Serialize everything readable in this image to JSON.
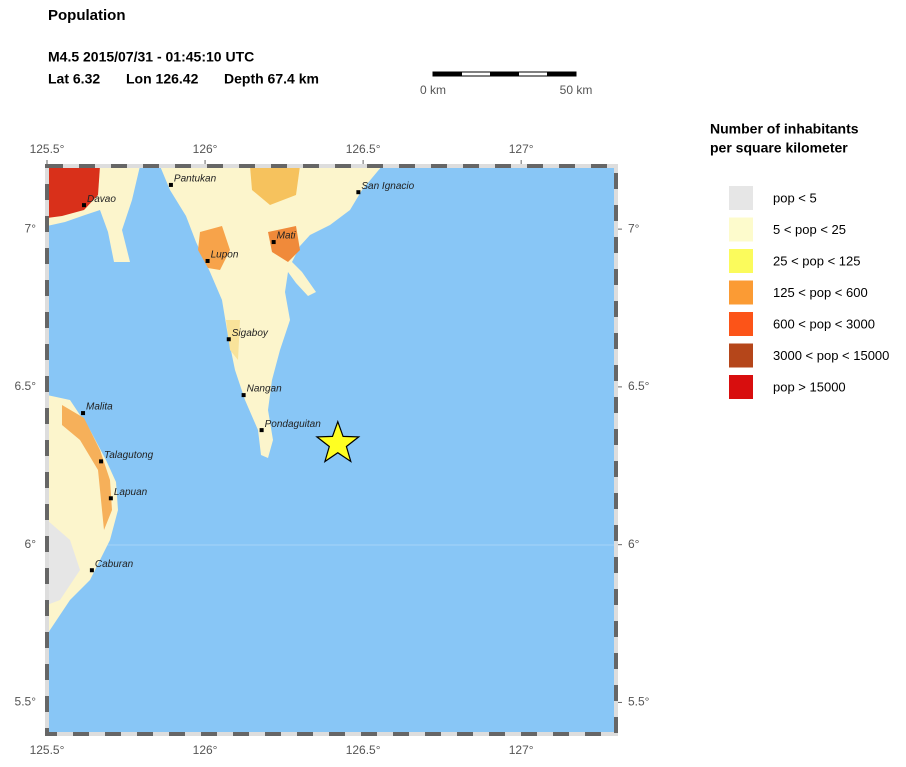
{
  "header": {
    "title": "Population",
    "event": "M4.5  2015/07/31 - 01:45:10 UTC",
    "lat": "Lat  6.32",
    "lon": "Lon 126.42",
    "depth": "Depth  67.4 km"
  },
  "scale_bar": {
    "start": "0 km",
    "end": "50 km"
  },
  "map": {
    "xlim": [
      125.5,
      127.3
    ],
    "ylim": [
      5.4,
      7.2
    ],
    "xticks": [
      {
        "value": 125.5,
        "label": "125.5°"
      },
      {
        "value": 126,
        "label": "126°"
      },
      {
        "value": 126.5,
        "label": "126.5°"
      },
      {
        "value": 127,
        "label": "127°"
      }
    ],
    "yticks": [
      {
        "value": 5.5,
        "label": "5.5°"
      },
      {
        "value": 6,
        "label": "6°"
      },
      {
        "value": 6.5,
        "label": "6.5°"
      },
      {
        "value": 7,
        "label": "7°"
      }
    ],
    "epicenter": {
      "lat": 6.32,
      "lon": 126.42,
      "color": "#ffff22"
    },
    "cities": [
      {
        "name": "Davao",
        "lat": 7.076,
        "lon": 125.617
      },
      {
        "name": "Pantukan",
        "lat": 7.14,
        "lon": 125.892
      },
      {
        "name": "San Ignacio",
        "lat": 7.117,
        "lon": 126.485
      },
      {
        "name": "Mati",
        "lat": 6.959,
        "lon": 126.217
      },
      {
        "name": "Lupon",
        "lat": 6.899,
        "lon": 126.008
      },
      {
        "name": "Sigaboy",
        "lat": 6.651,
        "lon": 126.075
      },
      {
        "name": "Nangan",
        "lat": 6.474,
        "lon": 126.122
      },
      {
        "name": "Pondaguitan",
        "lat": 6.363,
        "lon": 126.179
      },
      {
        "name": "Malita",
        "lat": 6.417,
        "lon": 125.614
      },
      {
        "name": "Talagutong",
        "lat": 6.264,
        "lon": 125.671
      },
      {
        "name": "Lapuan",
        "lat": 6.147,
        "lon": 125.702
      },
      {
        "name": "Caburan",
        "lat": 5.919,
        "lon": 125.642
      }
    ]
  },
  "legend": {
    "title": [
      "Number of inhabitants",
      "per square kilometer"
    ],
    "items": [
      {
        "label": "pop < 5",
        "color": "#e6e6e6"
      },
      {
        "label": "5 < pop < 25",
        "color": "#fdfbcc"
      },
      {
        "label": "25 < pop < 125",
        "color": "#fbfb5c"
      },
      {
        "label": "125 < pop < 600",
        "color": "#fb9b34"
      },
      {
        "label": "600 < pop < 3000",
        "color": "#fc5418"
      },
      {
        "label": "3000 < pop < 15000",
        "color": "#b5461a"
      },
      {
        "label": "pop > 15000",
        "color": "#d80e0e"
      }
    ]
  }
}
